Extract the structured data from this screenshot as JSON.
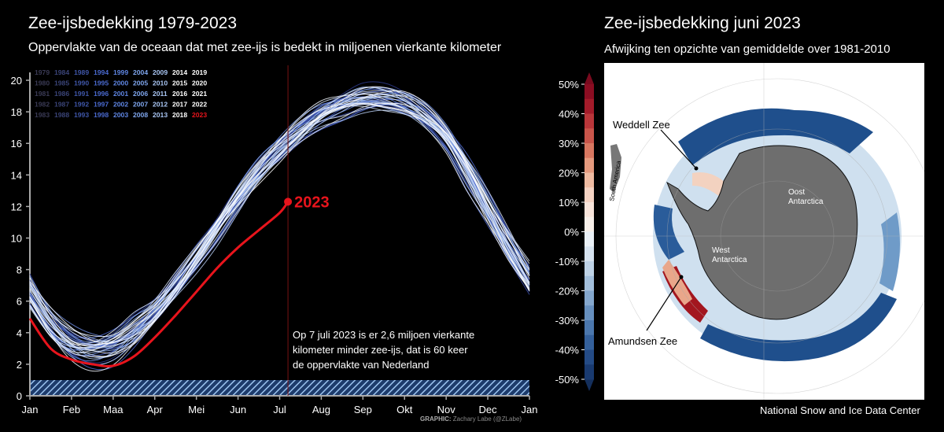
{
  "left": {
    "title": "Zee-ijsbedekking 1979-2023",
    "subtitle": "Oppervlakte van de oceaan dat met zee-ijs is bedekt in miljoenen vierkante kilometer",
    "annotation_lines": [
      "Op 7 juli 2023 is er 2,6 miljoen vierkante",
      "kilometer minder zee-ijs, dat is 60 keer",
      "de oppervlakte van Nederland"
    ],
    "credit_prefix": "GRAPHIC:",
    "credit_name": "Zachary Labe (@ZLabe)"
  },
  "right": {
    "title": "Zee-ijsbedekking juni 2023",
    "subtitle": "Afwijking ten opzichte van gemiddelde over 1981-2010",
    "source": "National Snow and Ice Data Center",
    "labels": {
      "weddell": "Weddell Zee",
      "amundsen": "Amundsen Zee",
      "east_1": "Oost",
      "east_2": "Antarctica",
      "west_1": "West",
      "west_2": "Antarctica",
      "south_america": "South America"
    }
  },
  "colors": {
    "background": "#000000",
    "highlight": "#e8141c",
    "land": "#6e6e6e"
  },
  "chart_data": [
    {
      "type": "line",
      "title": "Zee-ijsbedekking 1979-2023",
      "subtitle": "Oppervlakte van de oceaan dat met zee-ijs is bedekt in miljoenen vierkante kilometer",
      "x_tick_labels": [
        "Jan",
        "Feb",
        "Maa",
        "Apr",
        "Mei",
        "Jun",
        "Jul",
        "Aug",
        "Sep",
        "Okt",
        "Nov",
        "Dec",
        "Jan"
      ],
      "y_ticks": [
        0,
        2,
        4,
        6,
        8,
        10,
        12,
        14,
        16,
        18,
        20
      ],
      "ylim": [
        0,
        20.5
      ],
      "legend_years": [
        [
          "1979",
          "1984",
          "1989",
          "1994",
          "1999",
          "2004",
          "2009",
          "2014",
          "2019"
        ],
        [
          "1980",
          "1985",
          "1990",
          "1995",
          "2000",
          "2005",
          "2010",
          "2015",
          "2020"
        ],
        [
          "1981",
          "1986",
          "1991",
          "1996",
          "2001",
          "2006",
          "2011",
          "2016",
          "2021"
        ],
        [
          "1982",
          "1987",
          "1992",
          "1997",
          "2002",
          "2007",
          "2012",
          "2017",
          "2022"
        ],
        [
          "1983",
          "1988",
          "1993",
          "1998",
          "2003",
          "2008",
          "2013",
          "2018",
          "2023"
        ]
      ],
      "legend_placement": "top-left",
      "climatology_months": [
        1,
        1.5,
        2,
        2.5,
        3,
        3.5,
        4,
        4.5,
        5,
        5.5,
        6,
        6.5,
        7,
        7.5,
        8,
        8.5,
        9,
        9.5,
        10,
        10.5,
        11,
        11.5,
        12,
        12.5,
        13
      ],
      "climatology_extent": [
        6.5,
        4.5,
        3.3,
        2.95,
        3.2,
        4.1,
        5.3,
        6.9,
        8.7,
        10.6,
        12.5,
        14.2,
        15.6,
        16.8,
        17.8,
        18.4,
        18.8,
        18.8,
        18.5,
        17.7,
        16.4,
        14.3,
        11.9,
        9.5,
        7.3
      ],
      "series_2023": {
        "label": "2023",
        "months": [
          1,
          1.5,
          2,
          2.5,
          3,
          3.5,
          4,
          4.5,
          5,
          5.5,
          6,
          6.5,
          7,
          7.2
        ],
        "extent": [
          4.9,
          3.0,
          2.3,
          2.0,
          1.9,
          2.5,
          3.7,
          5.1,
          6.6,
          8.1,
          9.4,
          10.5,
          11.6,
          12.3
        ]
      },
      "highlight_date": "7 juli 2023",
      "highlight_month": 7.2
    },
    {
      "type": "heatmap",
      "title": "Zee-ijsbedekking juni 2023",
      "subtitle": "Afwijking ten opzichte van gemiddelde over 1981-2010",
      "colorbar_labels": [
        "50%",
        "40%",
        "30%",
        "20%",
        "10%",
        "0%",
        "-10%",
        "-20%",
        "-30%",
        "-40%",
        "-50%"
      ],
      "colorbar_range": [
        -50,
        50
      ],
      "colorbar_steps": 20
    }
  ]
}
